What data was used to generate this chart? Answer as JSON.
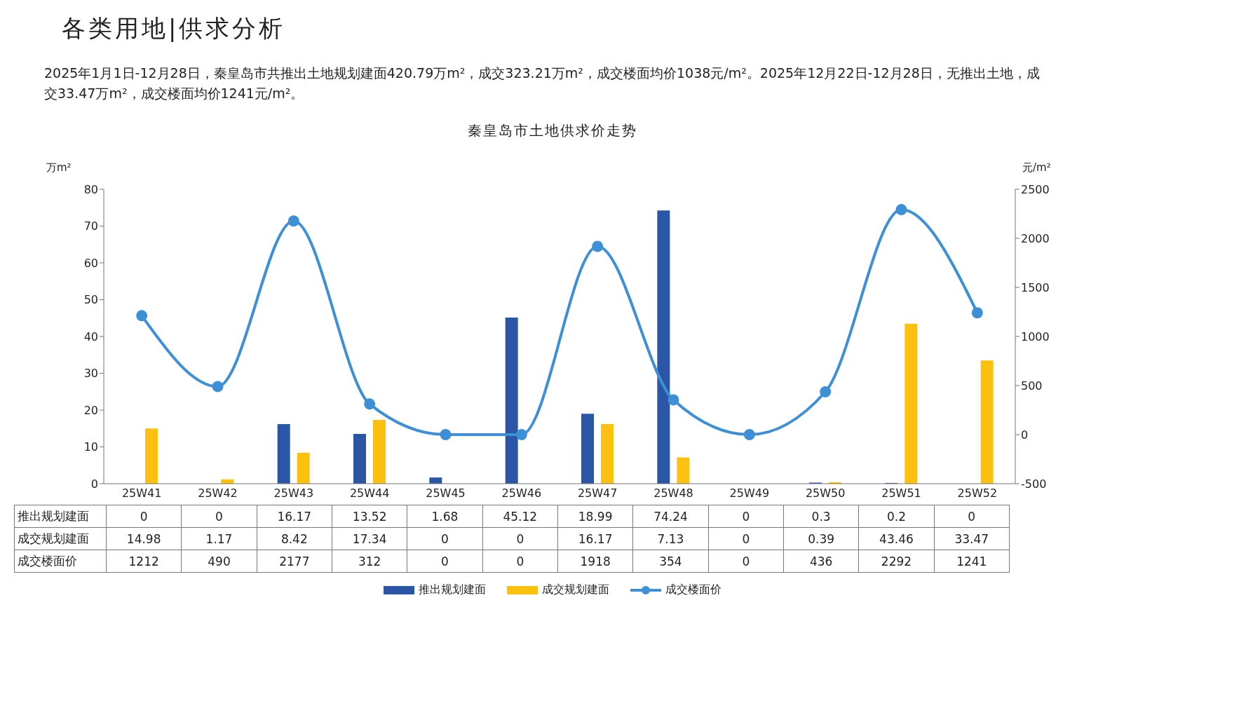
{
  "chart_data": {
    "type": "bar",
    "title": "各类用地|供求分析",
    "subtitle": "2025年1月1日-12月28日，秦皇岛市共推出土地规划建面420.79万m²，成交323.21万m²，成交楼面均价1038元/m²。2025年12月22日-12月28日，无推出土地，成交33.47万m²，成交楼面均价1241元/m²。",
    "annotations": [
      "秦皇岛市土地供求价走势"
    ],
    "ylabel": "万m²",
    "y2label": "元/m²",
    "categories": [
      "25W41",
      "25W42",
      "25W43",
      "25W44",
      "25W45",
      "25W46",
      "25W47",
      "25W48",
      "25W49",
      "25W50",
      "25W51",
      "25W52"
    ],
    "series": [
      {
        "name": "推出规划建面",
        "color": "#2b56a6",
        "values": [
          0,
          0,
          16.17,
          13.52,
          1.68,
          45.12,
          18.99,
          74.24,
          0,
          0.3,
          0.2,
          0
        ]
      },
      {
        "name": "成交规划建面",
        "color": "#fcc10f",
        "values": [
          14.98,
          1.17,
          8.42,
          17.34,
          0,
          0,
          16.17,
          7.13,
          0,
          0.39,
          43.46,
          33.47
        ]
      },
      {
        "name": "成交楼面价",
        "type": "line",
        "axis": "y2",
        "color": "#3d8fd6",
        "values": [
          1212,
          490,
          2177,
          312,
          0,
          0,
          1918,
          354,
          0,
          436,
          2292,
          1241
        ]
      }
    ],
    "ylim": [
      0,
      80
    ],
    "yticks": [
      0,
      10,
      20,
      30,
      40,
      50,
      60,
      70,
      80
    ],
    "y2lim": [
      -500,
      2500
    ],
    "y2ticks": [
      -500,
      0,
      500,
      1000,
      1500,
      2000,
      2500
    ],
    "data_labels": true,
    "legend": "bottom",
    "marker": "circle",
    "grid": false
  }
}
